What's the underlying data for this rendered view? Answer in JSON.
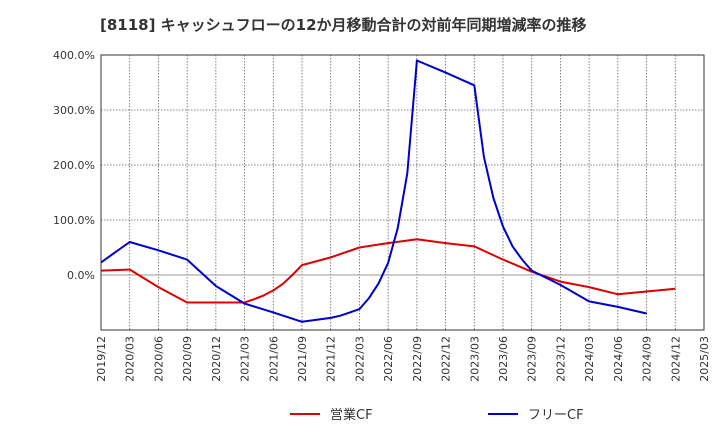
{
  "chart_data": {
    "type": "line",
    "title": "[8118]  キャッシュフローの12か月移動合計の対前年同期増減率の推移",
    "xlabel": "",
    "ylabel": "",
    "x_ticks": [
      "2019/12",
      "2020/03",
      "2020/06",
      "2020/09",
      "2020/12",
      "2021/03",
      "2021/06",
      "2021/09",
      "2021/12",
      "2022/03",
      "2022/06",
      "2022/09",
      "2022/12",
      "2023/03",
      "2023/06",
      "2023/09",
      "2023/12",
      "2024/03",
      "2024/06",
      "2024/09",
      "2024/12",
      "2025/03"
    ],
    "y_ticks": [
      {
        "value": 0,
        "label": "0.0%"
      },
      {
        "value": 100,
        "label": "100.0%"
      },
      {
        "value": 200,
        "label": "200.0%"
      },
      {
        "value": 300,
        "label": "300.0%"
      },
      {
        "value": 400,
        "label": "400.0%"
      }
    ],
    "ylim": [
      -100,
      400
    ],
    "grid": true,
    "legend_position": "bottom",
    "series": [
      {
        "name": "営業CF",
        "color": "#dd0000",
        "points": [
          [
            "2019/12",
            8
          ],
          [
            "2020/03",
            10
          ],
          [
            "2020/06",
            -22
          ],
          [
            "2020/09",
            -50
          ],
          [
            "2020/12",
            -50
          ],
          [
            "2021/03",
            -50
          ],
          [
            "2021/04",
            -44
          ],
          [
            "2021/05",
            -37
          ],
          [
            "2021/06",
            -28
          ],
          [
            "2021/07",
            -16
          ],
          [
            "2021/08",
            0
          ],
          [
            "2021/09",
            18
          ],
          [
            "2021/12",
            32
          ],
          [
            "2022/03",
            50
          ],
          [
            "2022/06",
            58
          ],
          [
            "2022/09",
            65
          ],
          [
            "2022/12",
            58
          ],
          [
            "2023/03",
            52
          ],
          [
            "2023/06",
            28
          ],
          [
            "2023/09",
            6
          ],
          [
            "2023/12",
            -12
          ],
          [
            "2024/03",
            -22
          ],
          [
            "2024/06",
            -35
          ],
          [
            "2024/09",
            -30
          ],
          [
            "2024/12",
            -25
          ]
        ]
      },
      {
        "name": "フリーCF",
        "color": "#0000cc",
        "points": [
          [
            "2019/12",
            23
          ],
          [
            "2020/03",
            60
          ],
          [
            "2020/06",
            45
          ],
          [
            "2020/09",
            28
          ],
          [
            "2020/12",
            -20
          ],
          [
            "2021/03",
            -52
          ],
          [
            "2021/06",
            -68
          ],
          [
            "2021/09",
            -85
          ],
          [
            "2021/12",
            -78
          ],
          [
            "2022/01",
            -74
          ],
          [
            "2022/02",
            -68
          ],
          [
            "2022/03",
            -62
          ],
          [
            "2022/04",
            -42
          ],
          [
            "2022/05",
            -15
          ],
          [
            "2022/06",
            22
          ],
          [
            "2022/07",
            85
          ],
          [
            "2022/08",
            185
          ],
          [
            "2022/09",
            390
          ],
          [
            "2022/12",
            368
          ],
          [
            "2023/03",
            345
          ],
          [
            "2023/04",
            215
          ],
          [
            "2023/05",
            140
          ],
          [
            "2023/06",
            88
          ],
          [
            "2023/07",
            52
          ],
          [
            "2023/08",
            28
          ],
          [
            "2023/09",
            8
          ],
          [
            "2023/12",
            -18
          ],
          [
            "2024/03",
            -48
          ],
          [
            "2024/06",
            -58
          ],
          [
            "2024/09",
            -70
          ]
        ]
      }
    ]
  }
}
